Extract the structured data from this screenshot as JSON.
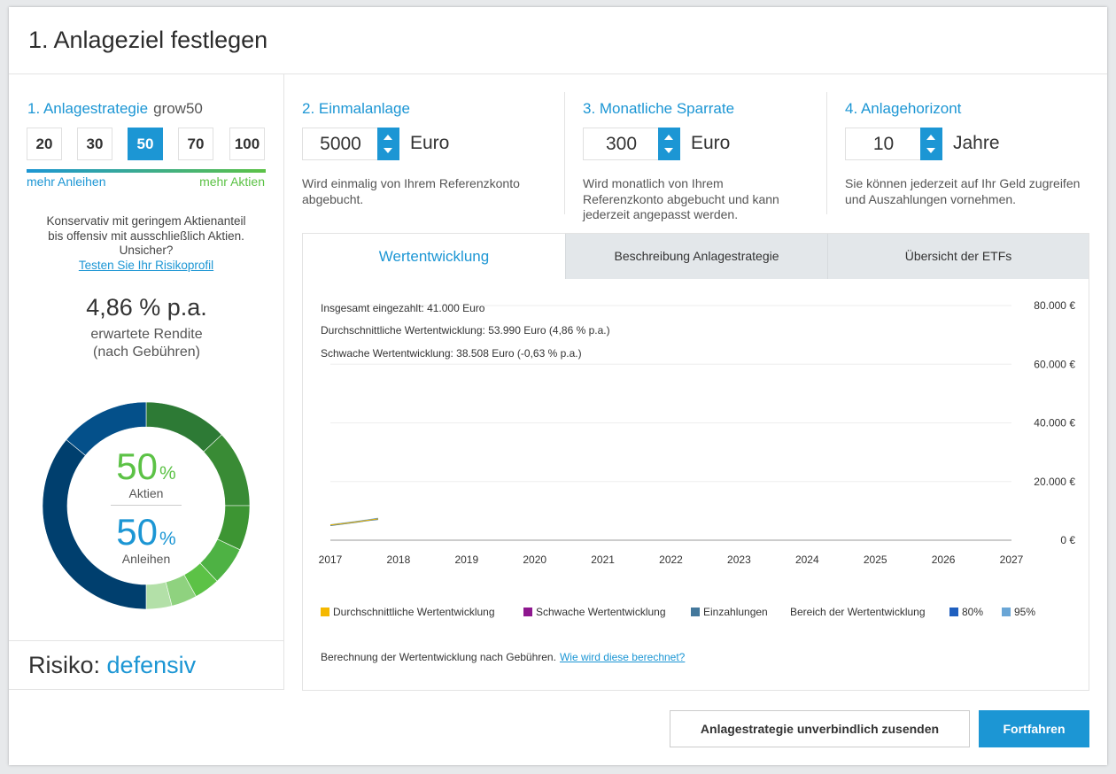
{
  "header": {
    "title": "1. Anlageziel festlegen"
  },
  "strategy": {
    "title": "1. Anlagestrategie",
    "name": "grow50",
    "options": [
      "20",
      "30",
      "50",
      "70",
      "100"
    ],
    "selected": "50",
    "left_label": "mehr Anleihen",
    "right_label": "mehr Aktien",
    "description": "Konservativ mit geringem Aktienanteil bis offensiv mit ausschließlich Aktien. Unsicher?",
    "profile_link": "Testen Sie Ihr Risikoprofil",
    "return_value": "4,86 % p.a.",
    "return_label_1": "erwartete Rendite",
    "return_label_2": "(nach Gebühren)",
    "stocks_pct": "50",
    "stocks_unit": "%",
    "stocks_label": "Aktien",
    "bonds_pct": "50",
    "bonds_unit": "%",
    "bonds_label": "Anleihen",
    "risk_label": "Risiko:",
    "risk_value": "defensiv",
    "donut_colors": {
      "stocks": [
        "#2d7a35",
        "#398b35",
        "#3d9533",
        "#4eb244",
        "#5cc246",
        "#8fd27f",
        "#b3e0a8"
      ],
      "bonds": [
        "#003f6e",
        "#04508a"
      ]
    }
  },
  "lump_sum": {
    "title": "2. Einmalanlage",
    "value": "5000",
    "unit": "Euro",
    "description": "Wird einmalig von Ihrem Referenzkonto abgebucht."
  },
  "monthly": {
    "title": "3. Monatliche Sparrate",
    "value": "300",
    "unit": "Euro",
    "description": "Wird monatlich von Ihrem Referenzkonto abgebucht und kann jederzeit angepasst werden."
  },
  "horizon": {
    "title": "4. Anlagehorizont",
    "value": "10",
    "unit": "Jahre",
    "description": "Sie können jederzeit auf Ihr Geld zugreifen und Auszahlungen vornehmen."
  },
  "tabs": [
    {
      "label": "Wertentwicklung",
      "active": true
    },
    {
      "label": "Beschreibung Anlagestrategie",
      "active": false
    },
    {
      "label": "Übersicht der ETFs",
      "active": false
    }
  ],
  "chart_info": {
    "total_deposit": "Insgesamt eingezahlt: 41.000 Euro",
    "avg_growth": "Durchschnittliche Wertentwicklung: 53.990 Euro (4,86 % p.a.)",
    "weak_growth": "Schwache Wertentwicklung: 38.508 Euro (-0,63 % p.a.)"
  },
  "chart_data": {
    "type": "area",
    "x_ticks": [
      "2017",
      "2018",
      "2019",
      "2020",
      "2021",
      "2022",
      "2023",
      "2024",
      "2025",
      "2026",
      "2027"
    ],
    "y_ticks": [
      "80.000 €",
      "60.000 €",
      "40.000 €",
      "20.000 €",
      "0 €"
    ],
    "ylim": [
      0,
      80000
    ],
    "xlim": [
      2017,
      2027
    ],
    "x": [
      2017.0,
      2017.2,
      2017.4,
      2017.55,
      2017.7
    ],
    "series": [
      {
        "name": "Durchschnittliche Wertentwicklung",
        "color": "#f5b800",
        "values": [
          5200,
          5700,
          6300,
          6800,
          7300
        ]
      },
      {
        "name": "Einzahlungen",
        "color": "#44789c",
        "values": [
          5000,
          5600,
          6200,
          6700,
          7100
        ]
      },
      {
        "name": "80%",
        "color": "#1f5fbf",
        "low": [
          5050,
          5550,
          6150,
          6700,
          7150
        ],
        "high": [
          5300,
          5900,
          6500,
          7000,
          7500
        ]
      },
      {
        "name": "95%",
        "color": "#6aa6d6",
        "low": [
          4900,
          5400,
          6000,
          6550,
          7000
        ],
        "high": [
          5450,
          6050,
          6650,
          7150,
          7650
        ]
      }
    ],
    "legend": [
      {
        "label": "Durchschnittliche Wertentwicklung",
        "color": "#f5b800"
      },
      {
        "label": "Schwache Wertentwicklung",
        "color": "#8e178f"
      },
      {
        "label": "Einzahlungen",
        "color": "#44789c"
      },
      {
        "label": "Bereich der Wertentwicklung",
        "color": ""
      },
      {
        "label": "80%",
        "color": "#1f5fbf"
      },
      {
        "label": "95%",
        "color": "#6aa6d6"
      }
    ],
    "grid": true
  },
  "footnote": {
    "text": "Berechnung der Wertentwicklung nach Gebühren.",
    "link": "Wie wird diese berechnet?"
  },
  "actions": {
    "send_label": "Anlagestrategie unverbindlich zusenden",
    "continue_label": "Fortfahren"
  }
}
